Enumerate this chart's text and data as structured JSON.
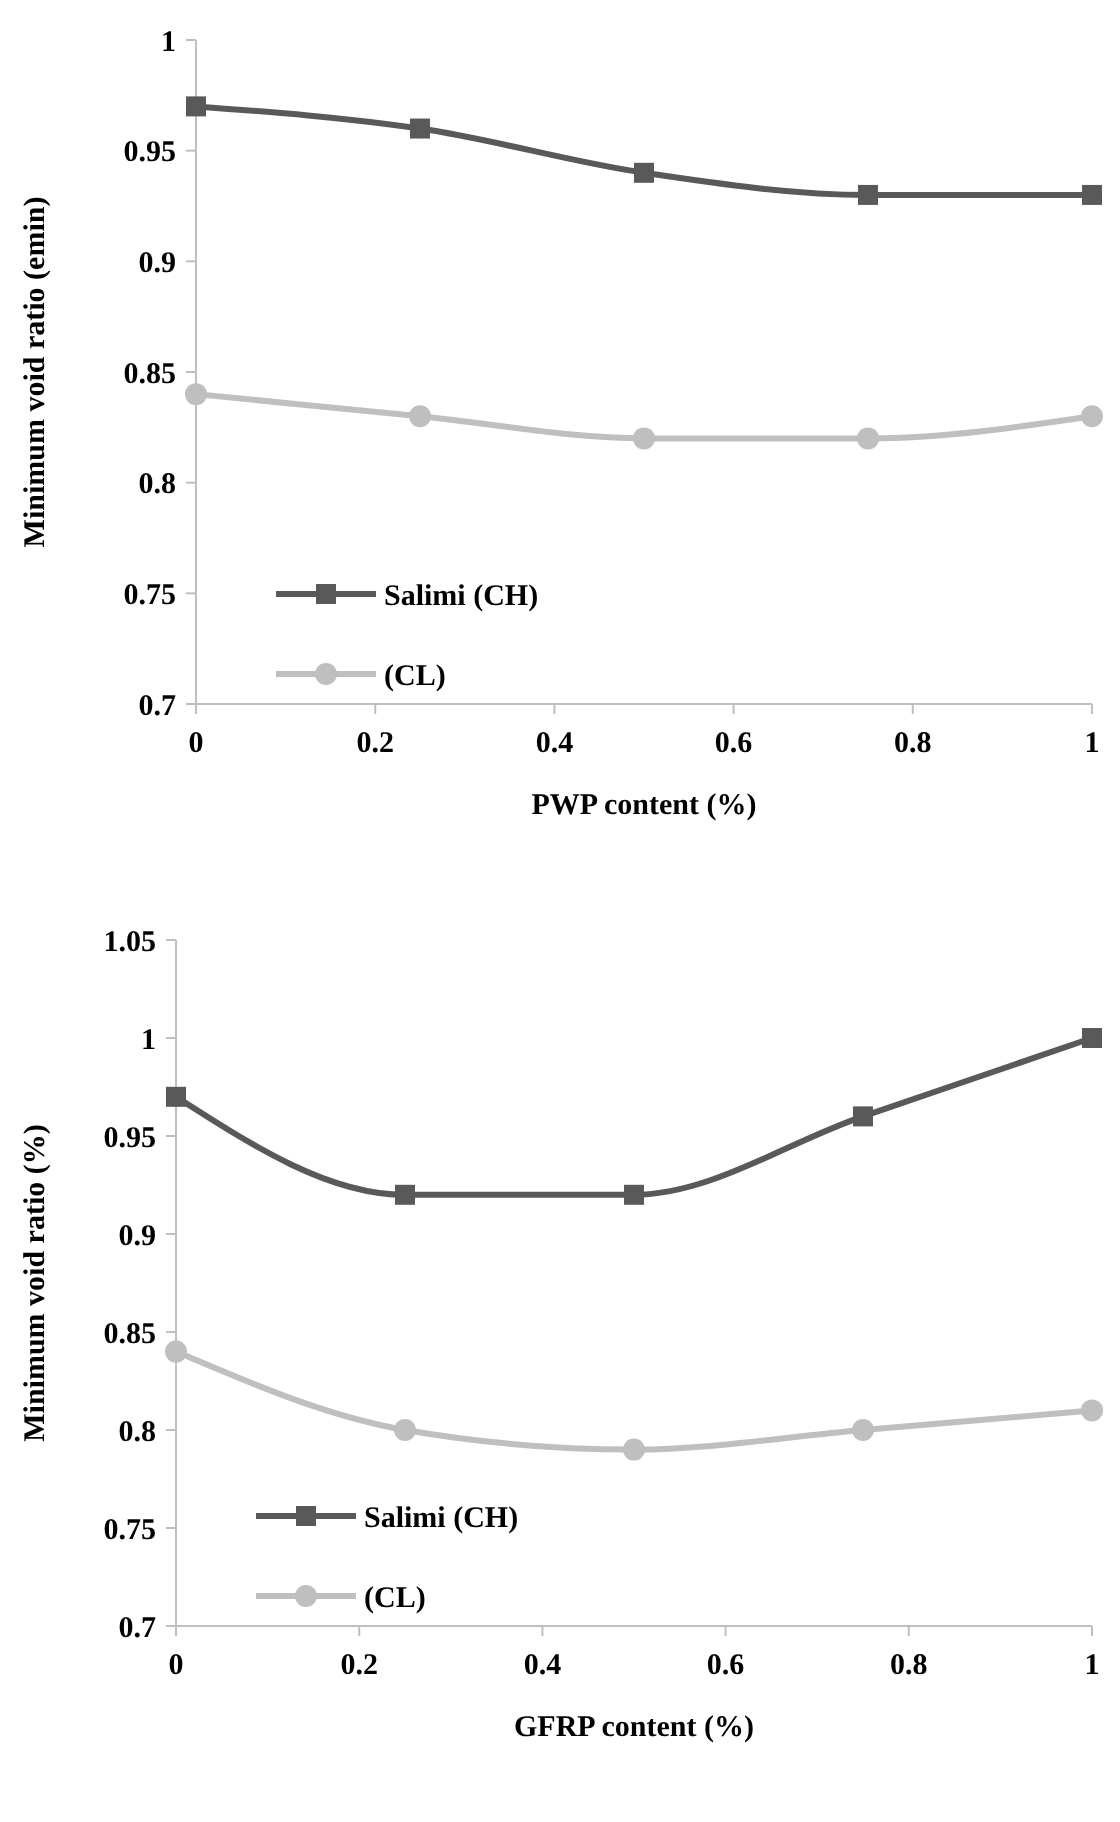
{
  "chart_data": [
    {
      "type": "line",
      "xlabel": "PWP content (%)",
      "ylabel": "Minimum void ratio (emin)",
      "x": [
        0,
        0.25,
        0.5,
        0.75,
        1
      ],
      "series": [
        {
          "name": "Salimi (CH)",
          "color": "#595959",
          "marker": "square",
          "values": [
            0.97,
            0.96,
            0.94,
            0.93,
            0.93
          ]
        },
        {
          "name": "(CL)",
          "color": "#bfbfbf",
          "marker": "circle",
          "values": [
            0.84,
            0.83,
            0.82,
            0.82,
            0.83
          ]
        }
      ],
      "xlim": [
        0,
        1
      ],
      "xticks": [
        0,
        0.2,
        0.4,
        0.6,
        0.8,
        1
      ],
      "ylim": [
        0.7,
        1
      ],
      "yticks": [
        0.7,
        0.75,
        0.8,
        0.85,
        0.9,
        0.95,
        1
      ],
      "grid": false,
      "legend": "bottom left"
    },
    {
      "type": "line",
      "xlabel": "GFRP content (%)",
      "ylabel": "Minimum void ratio (%)",
      "x": [
        0,
        0.25,
        0.5,
        0.75,
        1
      ],
      "series": [
        {
          "name": "Salimi (CH)",
          "color": "#595959",
          "marker": "square",
          "values": [
            0.97,
            0.92,
            0.92,
            0.96,
            1.0
          ]
        },
        {
          "name": "(CL)",
          "color": "#bfbfbf",
          "marker": "circle",
          "values": [
            0.84,
            0.8,
            0.79,
            0.8,
            0.81
          ]
        }
      ],
      "xlim": [
        0,
        1
      ],
      "xticks": [
        0,
        0.2,
        0.4,
        0.6,
        0.8,
        1
      ],
      "ylim": [
        0.7,
        1.05
      ],
      "yticks": [
        0.7,
        0.75,
        0.8,
        0.85,
        0.9,
        0.95,
        1,
        1.05
      ],
      "grid": false,
      "legend": "bottom left"
    }
  ]
}
